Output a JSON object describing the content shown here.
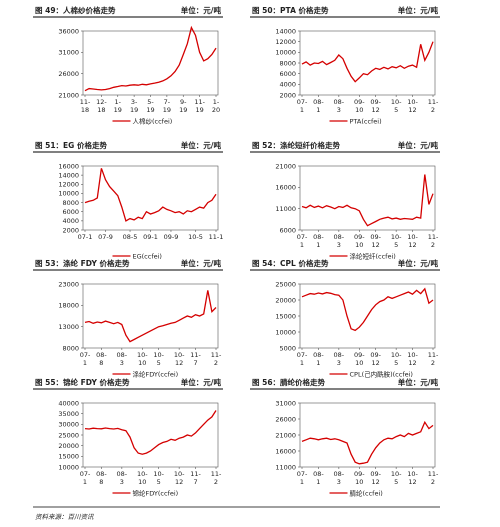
{
  "chart_data": [
    {
      "type": "line",
      "title": "图 49：人棉纱价格走势",
      "unit": "单位：元/吨",
      "categories": [
        "11-\n18",
        null,
        null,
        null,
        "12-\n18",
        null,
        null,
        null,
        "1-\n19",
        null,
        null,
        null,
        "3-\n19",
        null,
        null,
        null,
        "5-\n19",
        null,
        null,
        null,
        "7-\n19",
        null,
        null,
        null,
        "9-\n19",
        null,
        null,
        null,
        "11-\n19",
        null,
        null,
        null,
        "1-\n20"
      ],
      "series": [
        {
          "name": "人棉纱(ccfei)",
          "color": "#d40000",
          "values": [
            22000,
            22500,
            22400,
            22300,
            22200,
            22300,
            22500,
            22800,
            23000,
            23200,
            23100,
            23300,
            23400,
            23300,
            23500,
            23400,
            23600,
            23800,
            24000,
            24300,
            24800,
            25500,
            26500,
            28000,
            30500,
            33000,
            36800,
            35000,
            31000,
            29000,
            29500,
            30500,
            32000
          ]
        }
      ],
      "ylim": [
        21000,
        36000
      ],
      "yticks": [
        21000,
        26000,
        31000,
        36000
      ]
    },
    {
      "type": "line",
      "title": "图 50：PTA 价格走势",
      "unit": "单位：元/吨",
      "categories": [
        "07-\n1",
        null,
        null,
        null,
        "08-\n1",
        null,
        null,
        null,
        null,
        "08-\n3",
        null,
        null,
        null,
        null,
        "09-\n10",
        null,
        null,
        null,
        "09-\n12",
        null,
        null,
        null,
        null,
        "10-\n5",
        null,
        null,
        null,
        "10-\n12",
        null,
        null,
        null,
        null,
        "11-\n2"
      ],
      "series": [
        {
          "name": "PTA(ccfei)",
          "color": "#d40000",
          "values": [
            7800,
            8200,
            7600,
            8000,
            7900,
            8300,
            7700,
            8100,
            8500,
            9500,
            8800,
            7000,
            5500,
            4500,
            5200,
            6000,
            5800,
            6500,
            7000,
            6800,
            7200,
            6900,
            7300,
            7100,
            7500,
            7000,
            7400,
            7600,
            7200,
            11500,
            8500,
            10000,
            12000
          ]
        }
      ],
      "ylim": [
        2000,
        14000
      ],
      "yticks": [
        2000,
        4000,
        6000,
        8000,
        10000,
        12000,
        14000
      ]
    },
    {
      "type": "line",
      "title": "图 51：EG 价格走势",
      "unit": "单位：元/吨",
      "categories": [
        "07-1",
        null,
        null,
        null,
        null,
        "07-9",
        null,
        null,
        null,
        null,
        null,
        "08-5",
        null,
        null,
        null,
        null,
        "09-1",
        null,
        null,
        null,
        null,
        "09-9",
        null,
        null,
        null,
        null,
        null,
        "10-5",
        null,
        null,
        null,
        null,
        "11-1"
      ],
      "series": [
        {
          "name": "EG(ccfei)",
          "color": "#d40000",
          "values": [
            8000,
            8300,
            8500,
            9000,
            15500,
            13000,
            11500,
            10500,
            9500,
            7000,
            4000,
            4500,
            4200,
            4800,
            4500,
            6000,
            5500,
            5800,
            6200,
            7000,
            6500,
            6200,
            5800,
            6000,
            5500,
            6200,
            6000,
            6500,
            7000,
            6800,
            8000,
            8500,
            9800
          ]
        }
      ],
      "ylim": [
        2000,
        16000
      ],
      "yticks": [
        2000,
        4000,
        6000,
        8000,
        10000,
        12000,
        14000,
        16000
      ]
    },
    {
      "type": "line",
      "title": "图 52：涤纶短纤价格走势",
      "unit": "单位：元/吨",
      "categories": [
        "07-\n1",
        null,
        null,
        null,
        "08-\n1",
        null,
        null,
        null,
        null,
        "08-\n3",
        null,
        null,
        null,
        null,
        "09-\n10",
        null,
        null,
        null,
        "09-\n12",
        null,
        null,
        null,
        null,
        "10-\n5",
        null,
        null,
        null,
        "10-\n12",
        null,
        null,
        null,
        null,
        "11-\n2"
      ],
      "series": [
        {
          "name": "涤纶短纤(ccfei)",
          "color": "#d40000",
          "values": [
            11500,
            11200,
            11800,
            11300,
            11600,
            11200,
            11700,
            11400,
            11000,
            11500,
            11300,
            11800,
            11200,
            11000,
            10500,
            8500,
            7000,
            7500,
            8000,
            8500,
            8800,
            9000,
            8600,
            8800,
            8500,
            8700,
            8600,
            8500,
            9000,
            8800,
            19000,
            12000,
            14500
          ]
        }
      ],
      "ylim": [
        6000,
        21000
      ],
      "yticks": [
        6000,
        11000,
        16000,
        21000
      ]
    },
    {
      "type": "line",
      "title": "图 53：涤纶 FDY 价格走势",
      "unit": "单位：元/吨",
      "categories": [
        "07-\n1",
        null,
        null,
        null,
        "08-\n8",
        null,
        null,
        null,
        null,
        "08-\n3",
        null,
        null,
        null,
        null,
        "10-\n10",
        null,
        null,
        null,
        "10-\n5",
        null,
        null,
        null,
        null,
        "10-\n12",
        null,
        null,
        null,
        "11-\n7",
        null,
        null,
        null,
        null,
        "11-\n2"
      ],
      "series": [
        {
          "name": "涤纶FDY(ccfei)",
          "color": "#d40000",
          "values": [
            14000,
            14200,
            13800,
            14100,
            13900,
            14300,
            14000,
            13700,
            14000,
            13500,
            11000,
            9500,
            10000,
            10500,
            11000,
            11500,
            12000,
            12500,
            13000,
            13200,
            13500,
            13800,
            14000,
            14500,
            15000,
            15500,
            15200,
            15800,
            15500,
            16000,
            21500,
            16500,
            17500
          ]
        }
      ],
      "ylim": [
        8000,
        23000
      ],
      "yticks": [
        8000,
        13000,
        18000,
        23000
      ]
    },
    {
      "type": "line",
      "title": "图 54：CPL 价格走势",
      "unit": "单位：元/吨",
      "categories": [
        "07-\n1",
        null,
        null,
        null,
        "08-\n1",
        null,
        null,
        null,
        null,
        "08-\n3",
        null,
        null,
        null,
        null,
        "09-\n10",
        null,
        null,
        null,
        "09-\n12",
        null,
        null,
        null,
        null,
        "10-\n5",
        null,
        null,
        null,
        "10-\n12",
        null,
        null,
        null,
        null,
        "11-\n2"
      ],
      "series": [
        {
          "name": "CPL(己内酰胺)(ccfei)",
          "color": "#d40000",
          "values": [
            21000,
            21500,
            22000,
            21800,
            22200,
            21900,
            22300,
            22100,
            21700,
            21500,
            20000,
            15000,
            11000,
            10500,
            11500,
            13000,
            15000,
            17000,
            18500,
            19500,
            20000,
            21000,
            20500,
            21000,
            21500,
            22000,
            22500,
            21800,
            23000,
            22000,
            23500,
            19000,
            20000
          ]
        }
      ],
      "ylim": [
        5000,
        25000
      ],
      "yticks": [
        5000,
        10000,
        15000,
        20000,
        25000
      ]
    },
    {
      "type": "line",
      "title": "图 55：锦纶 FDY 价格走势",
      "unit": "单位：元/吨",
      "categories": [
        "07-\n1",
        null,
        null,
        null,
        "08-\n8",
        null,
        null,
        null,
        null,
        "08-\n3",
        null,
        null,
        null,
        null,
        "10-\n10",
        null,
        null,
        null,
        "10-\n5",
        null,
        null,
        null,
        null,
        "10-\n12",
        null,
        null,
        null,
        "11-\n7",
        null,
        null,
        null,
        null,
        "11-\n2"
      ],
      "series": [
        {
          "name": "锦纶FDY(ccfei)",
          "color": "#d40000",
          "values": [
            28000,
            27800,
            28200,
            28000,
            27900,
            28300,
            28000,
            27800,
            28100,
            27500,
            27000,
            24000,
            19000,
            16500,
            16000,
            16500,
            17500,
            19000,
            20500,
            21500,
            22000,
            23000,
            22500,
            23500,
            24000,
            25000,
            24500,
            26000,
            28000,
            30000,
            32000,
            33500,
            36500
          ]
        }
      ],
      "ylim": [
        10000,
        40000
      ],
      "yticks": [
        10000,
        15000,
        20000,
        25000,
        30000,
        35000,
        40000
      ]
    },
    {
      "type": "line",
      "title": "图 56：腈纶价格走势",
      "unit": "单位：元/吨",
      "categories": [
        "07-\n1",
        null,
        null,
        null,
        "08-\n1",
        null,
        null,
        null,
        null,
        "08-\n3",
        null,
        null,
        null,
        null,
        "09-\n10",
        null,
        null,
        null,
        "09-\n12",
        null,
        null,
        null,
        null,
        "10-\n5",
        null,
        null,
        null,
        "10-\n12",
        null,
        null,
        null,
        null,
        "11-\n2"
      ],
      "series": [
        {
          "name": "腈纶(ccfei)",
          "color": "#d40000",
          "values": [
            19000,
            19500,
            20000,
            19800,
            19500,
            19800,
            20000,
            19600,
            19800,
            19500,
            19000,
            18500,
            15000,
            12500,
            12000,
            12200,
            12500,
            15000,
            17000,
            18500,
            19500,
            20000,
            19800,
            20500,
            21000,
            20500,
            21500,
            21000,
            21500,
            22000,
            25000,
            23000,
            24000
          ]
        }
      ],
      "ylim": [
        11000,
        31000
      ],
      "yticks": [
        11000,
        16000,
        21000,
        26000,
        31000
      ]
    }
  ],
  "source": "资料来源：百川资讯"
}
